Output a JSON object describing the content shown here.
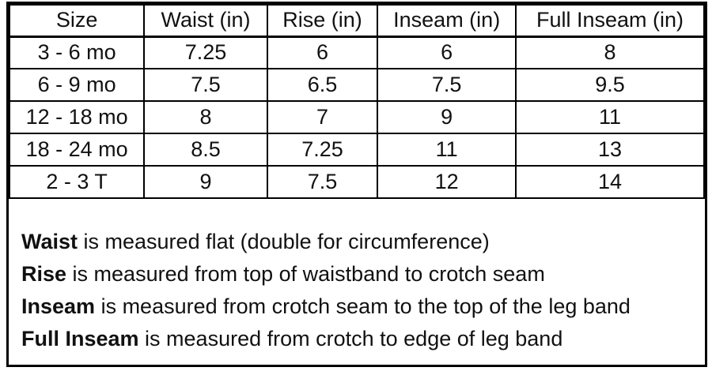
{
  "table": {
    "columns": [
      "Size",
      "Waist (in)",
      "Rise (in)",
      "Inseam (in)",
      "Full Inseam (in)"
    ],
    "rows": [
      [
        "3 - 6 mo",
        "7.25",
        "6",
        "6",
        "8"
      ],
      [
        "6 - 9 mo",
        "7.5",
        "6.5",
        "7.5",
        "9.5"
      ],
      [
        "12 - 18 mo",
        "8",
        "7",
        "9",
        "11"
      ],
      [
        "18 - 24 mo",
        "8.5",
        "7.25",
        "11",
        "13"
      ],
      [
        "2 - 3 T",
        "9",
        "7.5",
        "12",
        "14"
      ]
    ]
  },
  "notes": [
    {
      "term": "Waist",
      "text": " is measured flat (double for circumference)"
    },
    {
      "term": "Rise",
      "text": " is measured from top of waistband to crotch seam"
    },
    {
      "term": "Inseam",
      "text": " is measured from crotch seam to the top of the leg band"
    },
    {
      "term": "Full Inseam",
      "text": " is measured from crotch to edge of leg band"
    }
  ],
  "colors": {
    "border": "#000000",
    "text": "#111111",
    "background": "#ffffff"
  }
}
